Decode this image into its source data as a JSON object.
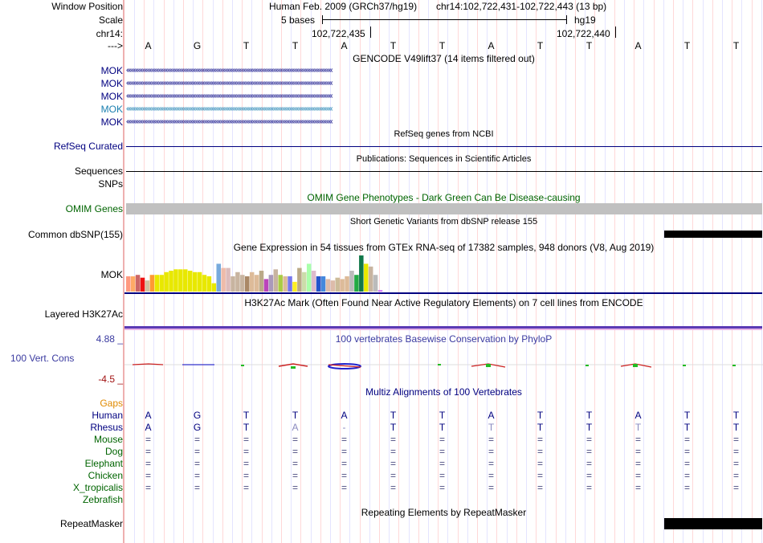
{
  "header": {
    "window_position_label": "Window Position",
    "scale_label": "Scale",
    "chrom_label": "chr14:",
    "arrow_label": "--->",
    "assembly_text": "Human Feb. 2009 (GRCh37/hg19)",
    "position_text": "chr14:102,722,431-102,722,443 (13 bp)",
    "scale_text": "5 bases",
    "db_text": "hg19",
    "coord_left": "102,722,435",
    "coord_right": "102,722,440"
  },
  "bases": [
    "A",
    "G",
    "T",
    "T",
    "A",
    "T",
    "T",
    "A",
    "T",
    "T",
    "A",
    "T",
    "T"
  ],
  "gencode": {
    "title": "GENCODE V49lift37 (14 items filtered out)",
    "items": [
      {
        "label": "MOK",
        "color": "#000080"
      },
      {
        "label": "MOK",
        "color": "#000080"
      },
      {
        "label": "MOK",
        "color": "#000080"
      },
      {
        "label": "MOK",
        "color": "#1a7fb0"
      },
      {
        "label": "MOK",
        "color": "#000080"
      }
    ]
  },
  "refseq": {
    "title": "RefSeq genes from NCBI",
    "label": "RefSeq Curated"
  },
  "publications": {
    "title": "Publications: Sequences in Scientific Articles",
    "label": "Sequences"
  },
  "snps_label": "SNPs",
  "omim": {
    "title": "OMIM Gene Phenotypes - Dark Green Can Be Disease-causing",
    "label": "OMIM Genes"
  },
  "dbsnp": {
    "title": "Short Genetic Variants from dbSNP release 155",
    "label": "Common dbSNP(155)"
  },
  "gtex": {
    "title": "Gene Expression in 54 tissues from GTEx RNA-seq of 17382 samples, 948 donors (V8, Aug 2019)",
    "label": "MOK",
    "values": [
      11,
      11,
      12,
      10,
      8,
      12,
      12,
      12,
      14,
      15,
      16,
      16,
      16,
      15,
      14,
      14,
      12,
      11,
      6,
      20,
      17,
      17,
      11,
      14,
      12,
      11,
      14,
      12,
      15,
      9,
      12,
      16,
      12,
      11,
      11,
      7,
      17,
      14,
      20,
      15,
      11,
      11,
      9,
      8,
      10,
      9,
      11,
      15,
      12,
      26,
      20,
      18,
      12,
      1
    ],
    "colors": [
      "#ff9980",
      "#ffaa66",
      "#cc6666",
      "#ee1111",
      "#d0c0a0",
      "#ff9933",
      "#e8e800",
      "#e8e800",
      "#e8e800",
      "#e8e800",
      "#e8e800",
      "#e8e800",
      "#e8e800",
      "#e8e800",
      "#e8e800",
      "#e8e800",
      "#e8e800",
      "#e8e800",
      "#e8e800",
      "#77aadd",
      "#eebbaa",
      "#ddbbbb",
      "#c8b4a0",
      "#c8b4a0",
      "#c8b4a0",
      "#aa8866",
      "#ddbb99",
      "#ddbb99",
      "#bbaa88",
      "#bb44bb",
      "#aa99bb",
      "#c8b4a0",
      "#aacc44",
      "#ddbb99",
      "#7777ee",
      "#ffee22",
      "#bbaa88",
      "#ccddaa",
      "#aaffaa",
      "#ddbbcc",
      "#2255cc",
      "#4488dd",
      "#ddbbaa",
      "#ddbbaa",
      "#ccbb99",
      "#ddbb99",
      "#ddbb99",
      "#bbbbbb",
      "#22aa44",
      "#11774a",
      "#e8e800",
      "#c8b4a0",
      "#bbbbbb",
      "#cc66ff"
    ]
  },
  "h3k27ac": {
    "title": "H3K27Ac Mark (Often Found Near Active Regulatory Elements) on 7 cell lines from ENCODE",
    "label": "Layered H3K27Ac"
  },
  "phylop": {
    "title": "100 vertebrates Basewise Conservation by PhyloP",
    "label": "100 Vert. Cons",
    "ymax": "4.88 _",
    "ymin": "-4.5 _"
  },
  "multiz": {
    "title": "Multiz Alignments of 100 Vertebrates",
    "gaps_label": "Gaps",
    "species": [
      {
        "name": "Human",
        "color": "#000080",
        "seq": [
          "A",
          "G",
          "T",
          "T",
          "A",
          "T",
          "T",
          "A",
          "T",
          "T",
          "A",
          "T",
          "T"
        ]
      },
      {
        "name": "Rhesus",
        "color": "#000080",
        "seq": [
          "A",
          "G",
          "T",
          "A",
          "-",
          "T",
          "T",
          "T",
          "T",
          "T",
          "T",
          "T",
          "T"
        ]
      },
      {
        "name": "Mouse",
        "color": "#006400",
        "seq": [
          "=",
          "=",
          "=",
          "=",
          "=",
          "=",
          "=",
          "=",
          "=",
          "=",
          "=",
          "=",
          "="
        ]
      },
      {
        "name": "Dog",
        "color": "#006400",
        "seq": [
          "=",
          "=",
          "=",
          "=",
          "=",
          "=",
          "=",
          "=",
          "=",
          "=",
          "=",
          "=",
          "="
        ]
      },
      {
        "name": "Elephant",
        "color": "#006400",
        "seq": [
          "=",
          "=",
          "=",
          "=",
          "=",
          "=",
          "=",
          "=",
          "=",
          "=",
          "=",
          "=",
          "="
        ]
      },
      {
        "name": "Chicken",
        "color": "#006400",
        "seq": [
          "=",
          "=",
          "=",
          "=",
          "=",
          "=",
          "=",
          "=",
          "=",
          "=",
          "=",
          "=",
          "="
        ]
      },
      {
        "name": "X_tropicalis",
        "color": "#006400",
        "seq": [
          "=",
          "=",
          "=",
          "=",
          "=",
          "=",
          "=",
          "=",
          "=",
          "=",
          "=",
          "=",
          "="
        ]
      },
      {
        "name": "Zebrafish",
        "color": "#006400",
        "seq": []
      }
    ]
  },
  "repeatmasker": {
    "title": "Repeating Elements by RepeatMasker",
    "label": "RepeatMasker"
  }
}
